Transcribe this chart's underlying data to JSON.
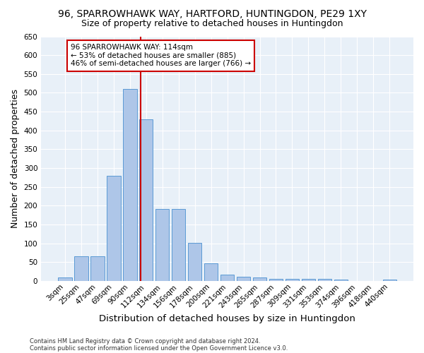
{
  "title": "96, SPARROWHAWK WAY, HARTFORD, HUNTINGDON, PE29 1XY",
  "subtitle": "Size of property relative to detached houses in Huntingdon",
  "xlabel": "Distribution of detached houses by size in Huntingdon",
  "ylabel": "Number of detached properties",
  "footnote1": "Contains HM Land Registry data © Crown copyright and database right 2024.",
  "footnote2": "Contains public sector information licensed under the Open Government Licence v3.0.",
  "categories": [
    "3sqm",
    "25sqm",
    "47sqm",
    "69sqm",
    "90sqm",
    "112sqm",
    "134sqm",
    "156sqm",
    "178sqm",
    "200sqm",
    "221sqm",
    "243sqm",
    "265sqm",
    "287sqm",
    "309sqm",
    "331sqm",
    "353sqm",
    "374sqm",
    "396sqm",
    "418sqm",
    "440sqm"
  ],
  "values": [
    10,
    65,
    65,
    280,
    510,
    430,
    192,
    192,
    102,
    46,
    16,
    12,
    9,
    5,
    5,
    5,
    5,
    4,
    0,
    0,
    4
  ],
  "bar_color": "#aec6e8",
  "bar_edge_color": "#5b9bd5",
  "vline_color": "#cc0000",
  "annotation_text": "96 SPARROWHAWK WAY: 114sqm\n← 53% of detached houses are smaller (885)\n46% of semi-detached houses are larger (766) →",
  "annotation_box_color": "#ffffff",
  "annotation_box_edge": "#cc0000",
  "ylim": [
    0,
    650
  ],
  "yticks": [
    0,
    50,
    100,
    150,
    200,
    250,
    300,
    350,
    400,
    450,
    500,
    550,
    600,
    650
  ],
  "bg_color": "#e8f0f8",
  "title_fontsize": 10,
  "subtitle_fontsize": 9,
  "axis_label_fontsize": 9,
  "tick_fontsize": 7.5,
  "footnote_fontsize": 6
}
